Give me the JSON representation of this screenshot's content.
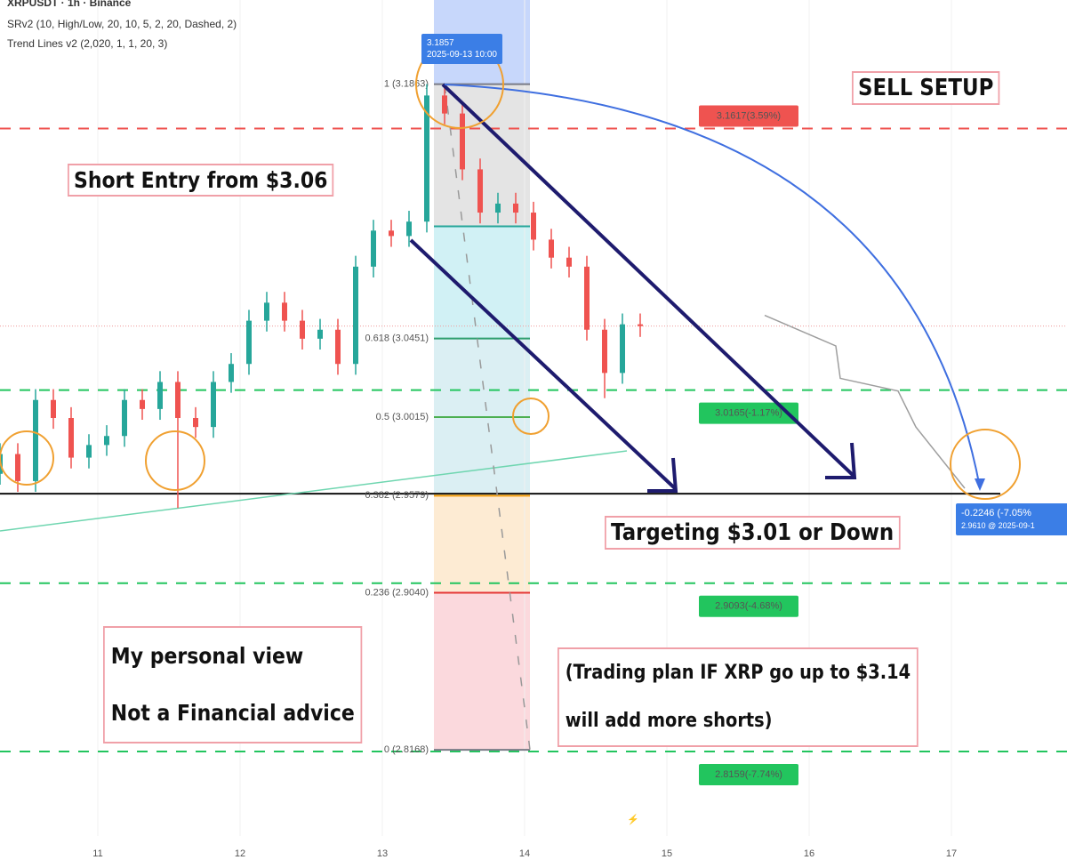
{
  "header": {
    "symbol": "XRPUSDT · 1h · Binance",
    "indicators": [
      "SRv2 (10, High/Low, 20, 10, 5, 2, 20, Dashed, 2)",
      "Trend Lines v2 (2,020, 1, 1, 20, 3)"
    ]
  },
  "chart_data": {
    "type": "candlestick",
    "x": [
      10.3125,
      10.4375,
      10.5625,
      10.6875,
      10.8125,
      10.9375,
      11.0625,
      11.1875,
      11.3125,
      11.4375,
      11.5625,
      11.6875,
      11.8125,
      11.9375,
      12.0625,
      12.1875,
      12.3125,
      12.4375,
      12.5625,
      12.6875,
      12.8125,
      12.9375,
      13.0625,
      13.1875,
      13.3125,
      13.4375,
      13.5625,
      13.6875,
      13.8125,
      13.9375,
      14.0625,
      14.1875,
      14.3125,
      14.4375,
      14.5625,
      14.6875,
      14.8125
    ],
    "open": [
      2.97,
      2.981,
      2.966,
      3.011,
      3.001,
      2.979,
      2.986,
      2.991,
      3.011,
      3.006,
      3.021,
      3.001,
      2.996,
      3.021,
      3.031,
      3.055,
      3.065,
      3.055,
      3.045,
      3.05,
      3.031,
      3.085,
      3.105,
      3.102,
      3.11,
      3.18,
      3.17,
      3.139,
      3.115,
      3.12,
      3.115,
      3.1,
      3.09,
      3.085,
      3.05,
      3.026,
      3.053
    ],
    "high": [
      2.987,
      2.987,
      3.017,
      3.017,
      3.007,
      2.992,
      2.997,
      3.017,
      3.017,
      3.027,
      3.027,
      3.007,
      3.027,
      3.037,
      3.061,
      3.071,
      3.071,
      3.061,
      3.056,
      3.056,
      3.091,
      3.111,
      3.111,
      3.116,
      3.1863,
      3.186,
      3.176,
      3.145,
      3.126,
      3.126,
      3.121,
      3.106,
      3.096,
      3.091,
      3.056,
      3.059,
      3.059
    ],
    "low": [
      2.964,
      2.96,
      2.96,
      2.995,
      2.973,
      2.973,
      2.98,
      2.985,
      3.0,
      3.0,
      2.951,
      2.99,
      2.99,
      3.015,
      3.025,
      3.049,
      3.049,
      3.039,
      3.039,
      3.025,
      3.025,
      3.079,
      3.096,
      3.096,
      3.104,
      3.164,
      3.133,
      3.109,
      3.109,
      3.109,
      3.094,
      3.084,
      3.079,
      3.044,
      3.012,
      3.02,
      3.046
    ],
    "close": [
      2.981,
      2.966,
      3.011,
      3.001,
      2.979,
      2.986,
      2.991,
      3.011,
      3.006,
      3.021,
      3.001,
      2.996,
      3.021,
      3.031,
      3.055,
      3.065,
      3.055,
      3.045,
      3.05,
      3.031,
      3.085,
      3.105,
      3.102,
      3.11,
      3.18,
      3.17,
      3.139,
      3.115,
      3.12,
      3.115,
      3.1,
      3.09,
      3.085,
      3.05,
      3.026,
      3.053,
      3.052
    ],
    "up_color": "#26a69a",
    "down_color": "#ef5350",
    "xlim": [
      10.3125,
      17.8125
    ],
    "xticks": [
      11,
      12,
      13,
      14,
      15,
      16,
      17
    ],
    "ylim": [
      2.769,
      3.233
    ],
    "projection": {
      "x": [
        15.6875,
        16.1875,
        16.21875,
        16.625,
        16.75,
        17.09375
      ],
      "values": [
        3.058,
        3.041,
        3.023,
        3.016,
        2.996,
        2.962
      ],
      "color": "#9e9e9e"
    },
    "levels": [
      {
        "value": 3.1617,
        "label": "3.1617(3.59%)",
        "color": "#ef5350"
      },
      {
        "value": 3.0165,
        "label": "3.0165(-1.17%)",
        "color": "#22c55e"
      },
      {
        "value": 2.9093,
        "label": "2.9093(-4.68%)",
        "color": "#22c55e"
      },
      {
        "value": 2.8159,
        "label": "2.8159(-7.74%)",
        "color": "#22c55e"
      }
    ],
    "support": 2.959,
    "last_price": 3.052,
    "fib": [
      {
        "value": 3.1863,
        "label": "1 (3.1863)",
        "color": "#787b86"
      },
      {
        "value": 3.1074,
        "color": "#26a69a"
      },
      {
        "value": 3.0451,
        "label": "0.618 (3.0451)",
        "color": "#2e9e6e"
      },
      {
        "value": 3.0015,
        "label": "0.5 (3.0015)",
        "color": "#4caf50"
      },
      {
        "value": 2.9579,
        "label": "0.382 (2.9579)",
        "color": "#f59e0b"
      },
      {
        "value": 2.904,
        "label": "0.236 (2.9040)",
        "color": "#e53935"
      },
      {
        "value": 2.8168,
        "label": "0 (2.8168)",
        "color": "#787b86"
      }
    ],
    "marker": {
      "price": 3.1857,
      "time": "2025-09-13 10:00"
    },
    "measure": {
      "change": "-0.2246 (-7.05%",
      "detail": "2.9610 @ 2025-09-1"
    }
  },
  "annotations": {
    "sell": "SELL SETUP",
    "entry": "Short Entry from $3.06",
    "target": "Targeting $3.01 or Down",
    "view": [
      "My personal view",
      "Not a Financial advice"
    ],
    "plan": [
      "(Trading plan IF XRP go up to $3.14",
      "will add more shorts)"
    ]
  }
}
